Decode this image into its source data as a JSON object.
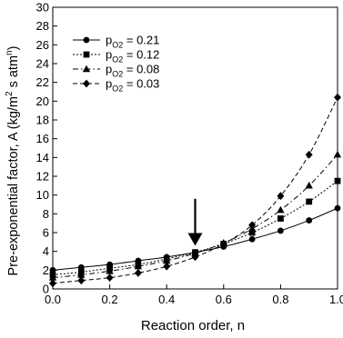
{
  "chart_data": {
    "type": "line",
    "xlabel": "Reaction order, n",
    "ylabel_main": "Pre-exponential factor, A (kg/m",
    "ylabel_sup1": "2",
    "ylabel_mid": " s atm",
    "ylabel_sup2": "n",
    "ylabel_end": ")",
    "xlim": [
      0.0,
      1.0
    ],
    "ylim": [
      0,
      30
    ],
    "x_ticks": [
      0.0,
      0.2,
      0.4,
      0.6,
      0.8,
      1.0
    ],
    "x_tick_labels": [
      "0.0",
      "0.2",
      "0.4",
      "0.6",
      "0.8",
      "1.0"
    ],
    "y_ticks": [
      0,
      2,
      4,
      6,
      8,
      10,
      12,
      14,
      16,
      18,
      20,
      22,
      24,
      26,
      28,
      30
    ],
    "y_tick_labels": [
      "0",
      "2",
      "4",
      "6",
      "8",
      "10",
      "12",
      "14",
      "16",
      "18",
      "20",
      "22",
      "24",
      "26",
      "28",
      "30"
    ],
    "x": [
      0.0,
      0.1,
      0.2,
      0.3,
      0.4,
      0.5,
      0.6,
      0.7,
      0.8,
      0.9,
      1.0
    ],
    "legend": {
      "position": "top-left"
    },
    "series": [
      {
        "label_prefix": "p",
        "label_sub": "O2",
        "label_suffix": " = 0.21",
        "marker": "circle",
        "dash": "solid",
        "values": [
          2.0,
          2.3,
          2.6,
          3.0,
          3.4,
          3.9,
          4.5,
          5.3,
          6.2,
          7.3,
          8.6
        ]
      },
      {
        "label_prefix": "p",
        "label_sub": "O2",
        "label_suffix": " = 0.12",
        "marker": "square",
        "dash": "dot",
        "values": [
          1.5,
          1.8,
          2.2,
          2.6,
          3.2,
          3.9,
          4.8,
          6.0,
          7.5,
          9.3,
          11.5
        ]
      },
      {
        "label_prefix": "p",
        "label_sub": "O2",
        "label_suffix": " = 0.08",
        "marker": "triangle",
        "dash": "dashdot",
        "values": [
          1.2,
          1.5,
          1.9,
          2.4,
          3.0,
          3.8,
          4.9,
          6.4,
          8.4,
          11.0,
          14.3
        ]
      },
      {
        "label_prefix": "p",
        "label_sub": "O2",
        "label_suffix": " = 0.03",
        "marker": "diamond",
        "dash": "dash",
        "values": [
          0.6,
          0.9,
          1.2,
          1.7,
          2.4,
          3.4,
          4.8,
          6.8,
          9.9,
          14.3,
          20.4
        ]
      }
    ],
    "annotation": {
      "type": "arrow",
      "x": 0.5,
      "y_from": 9.6,
      "y_to": 4.6
    }
  }
}
